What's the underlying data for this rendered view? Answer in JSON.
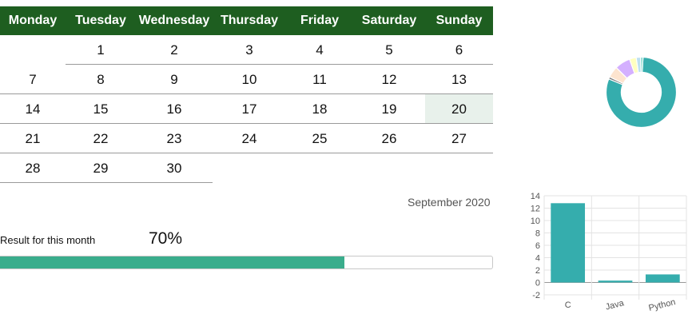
{
  "calendar": {
    "days": [
      "Monday",
      "Tuesday",
      "Wednesday",
      "Thursday",
      "Friday",
      "Saturday",
      "Sunday"
    ],
    "weeks": [
      [
        "",
        "1",
        "2",
        "3",
        "4",
        "5",
        "6"
      ],
      [
        "7",
        "8",
        "9",
        "10",
        "11",
        "12",
        "13"
      ],
      [
        "14",
        "15",
        "16",
        "17",
        "18",
        "19",
        "20"
      ],
      [
        "21",
        "22",
        "23",
        "24",
        "25",
        "26",
        "27"
      ],
      [
        "28",
        "29",
        "30",
        "",
        "",
        "",
        ""
      ]
    ],
    "highlighted_day": "20",
    "month_label": "September 2020"
  },
  "result": {
    "label": "Result for this month",
    "percent_text": "70%",
    "progress_fraction": 0.7,
    "bar_color": "#3aad8c"
  },
  "colors": {
    "header_bg": "#1e5e20",
    "highlight_bg": "#e8f1eb",
    "teal": "#35adad"
  },
  "chart_data": [
    {
      "type": "pie",
      "donut": true,
      "values": [
        78,
        1,
        5,
        7,
        3,
        2,
        1
      ],
      "colors": [
        "#35adad",
        "#7a7a7a",
        "#fde4cf",
        "#d4b0ff",
        "#ffffc0",
        "#bde0f0",
        "#6fd3c5"
      ]
    },
    {
      "type": "bar",
      "categories": [
        "C",
        "Java",
        "Python"
      ],
      "values": [
        12.8,
        0.3,
        1.3
      ],
      "ylim": [
        -2,
        14
      ],
      "yticks": [
        "14",
        "12",
        "10",
        "8",
        "6",
        "4",
        "2",
        "0",
        "-2"
      ],
      "grid": true,
      "color": "#35adad"
    }
  ]
}
